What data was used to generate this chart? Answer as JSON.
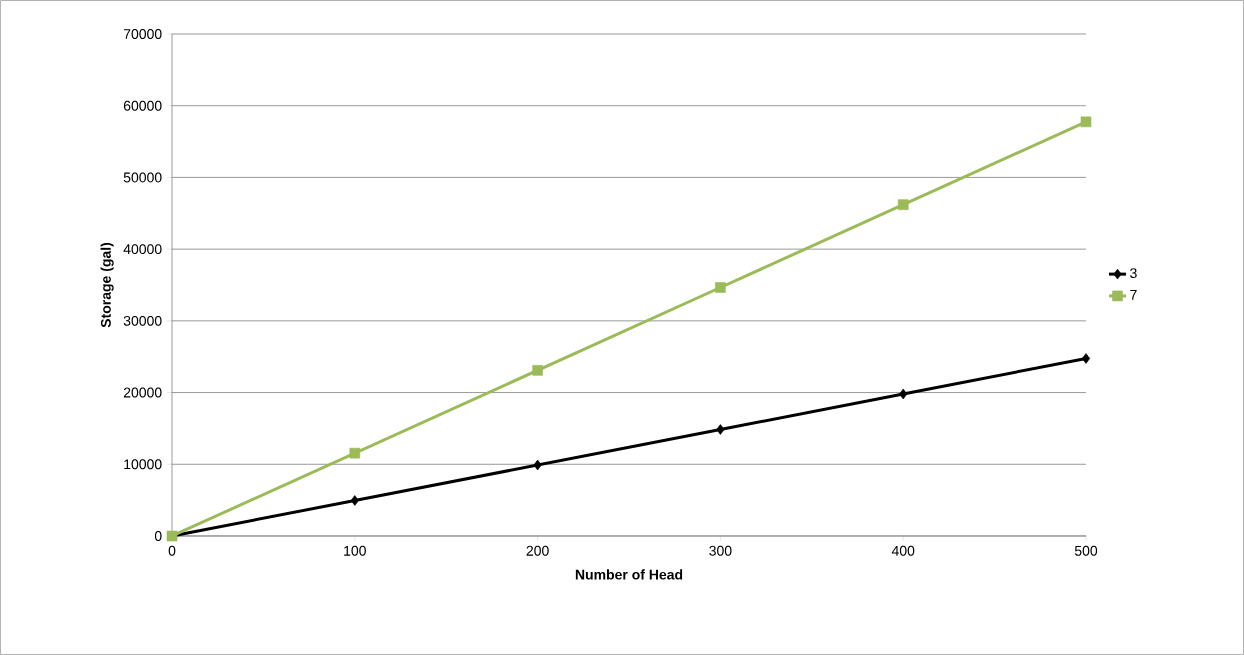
{
  "chart_data": {
    "type": "line",
    "xlabel": "Number of Head",
    "ylabel": "Storage (gal)",
    "x": [
      0,
      100,
      200,
      300,
      400,
      500
    ],
    "series": [
      {
        "name": "3",
        "color": "#000000",
        "marker": "diamond",
        "values": [
          0,
          4950,
          9900,
          14850,
          19800,
          24750
        ]
      },
      {
        "name": "7",
        "color": "#9bbb59",
        "marker": "square",
        "values": [
          0,
          11550,
          23100,
          34650,
          46200,
          57750
        ]
      }
    ],
    "xlim": [
      0,
      500
    ],
    "xticks": [
      0,
      100,
      200,
      300,
      400,
      500
    ],
    "ylim": [
      0,
      70000
    ],
    "yticks": [
      0,
      10000,
      20000,
      30000,
      40000,
      50000,
      60000,
      70000
    ],
    "grid": "y",
    "legend": "right",
    "line_style": "solid"
  }
}
